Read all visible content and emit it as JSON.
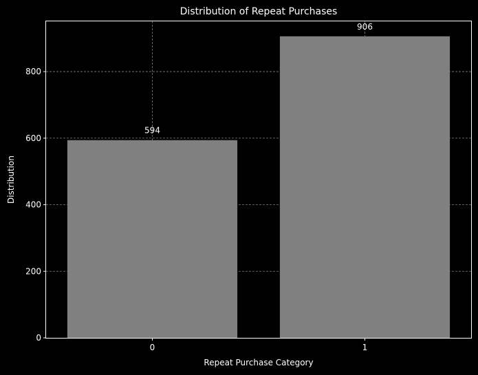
{
  "chart_data": {
    "type": "bar",
    "title": "Distribution of Repeat Purchases",
    "xlabel": "Repeat Purchase Category",
    "ylabel": "Distribution",
    "categories": [
      "0",
      "1"
    ],
    "values": [
      594,
      906
    ],
    "data_labels": [
      "594",
      "906"
    ],
    "yticks": [
      0,
      200,
      400,
      600,
      800
    ],
    "ytick_labels": [
      "0",
      "200",
      "400",
      "600",
      "800"
    ],
    "ylim": [
      0,
      951
    ],
    "grid": true,
    "colors": {
      "background": "#000000",
      "bar": "#808080",
      "text": "#ffffff",
      "grid": "#808080"
    }
  }
}
